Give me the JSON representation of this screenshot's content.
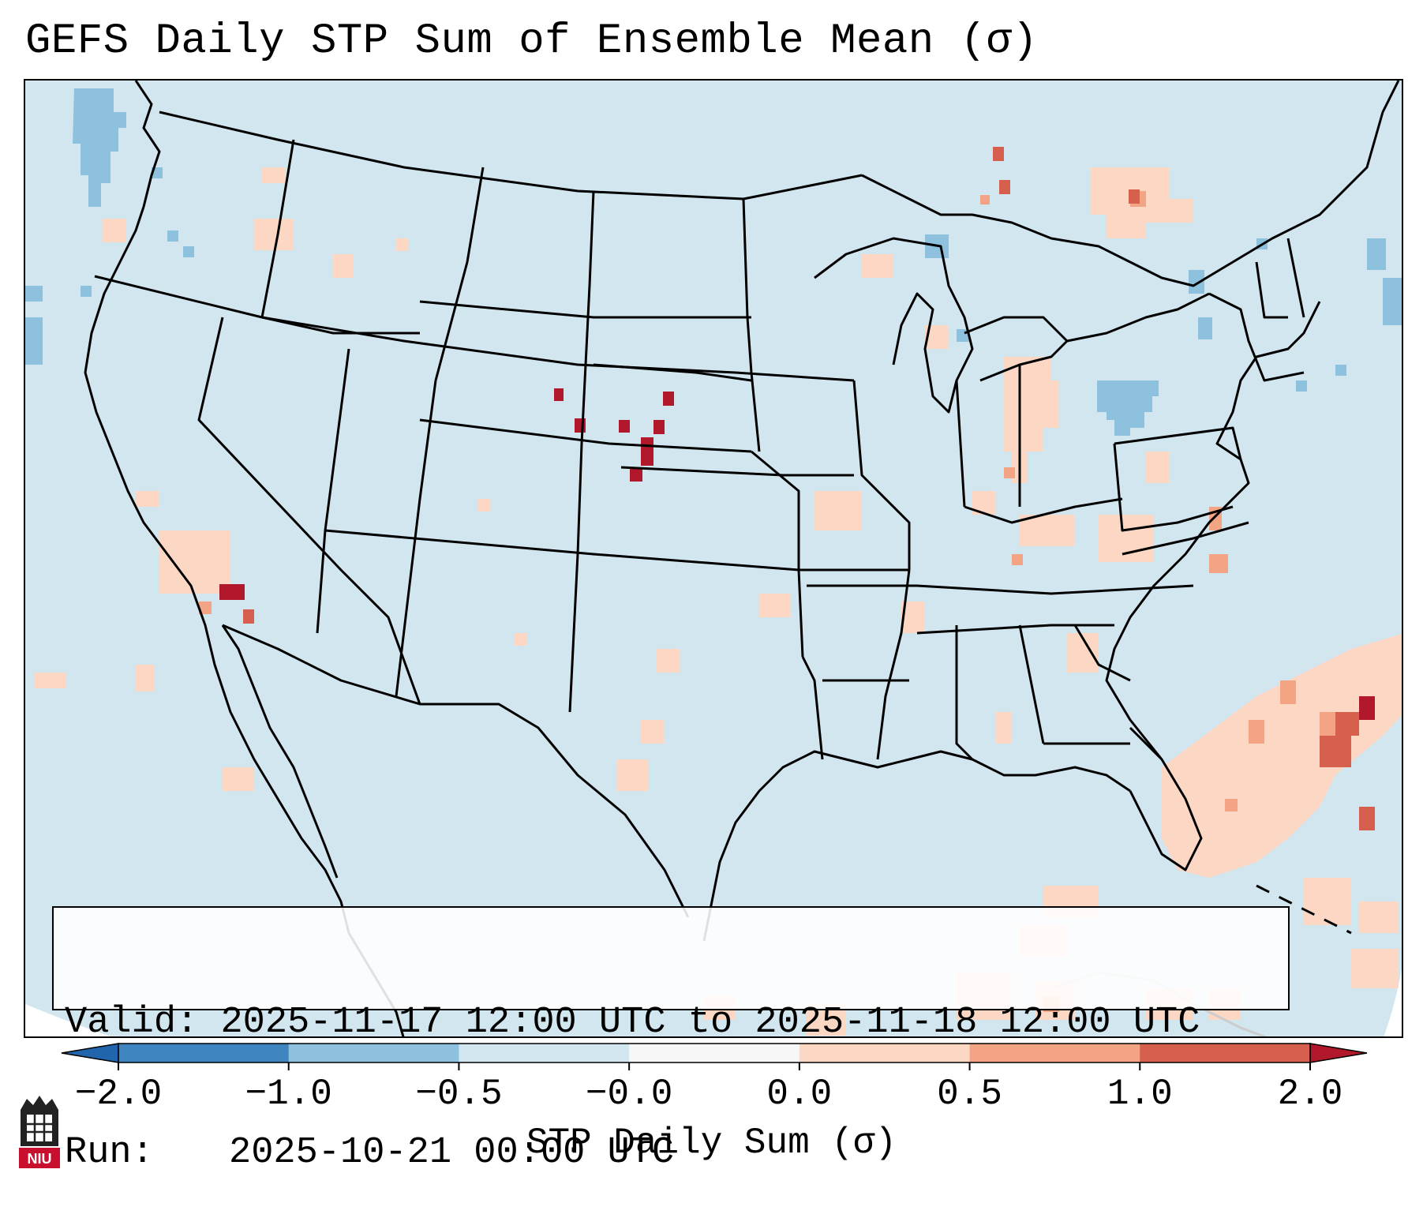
{
  "title": "GEFS Daily STP Sum of Ensemble Mean (σ)",
  "info": {
    "valid_label": "Valid:",
    "valid_value": "2025-11-17 12:00 UTC to 2025-11-18 12:00 UTC",
    "run_label": "Run:",
    "run_value": "2025-10-21 00:00 UTC"
  },
  "colorbar": {
    "label": "STP Daily Sum (σ)",
    "ticks": [
      "−2.0",
      "−1.0",
      "−0.5",
      "−0.0",
      "0.0",
      "0.5",
      "1.0",
      "2.0"
    ],
    "colors": [
      "#3f86c0",
      "#8ec1dd",
      "#d2e6f0",
      "#f7f7f7",
      "#fcd7c4",
      "#f2a484",
      "#d6604d"
    ],
    "extend_low_color": "#2166ac",
    "extend_high_color": "#b2182b"
  },
  "map": {
    "region": "CONUS",
    "background_color": "#d2e6f0",
    "positive_anomalies": [
      "Central Plains (Nebraska)",
      "Southern Nevada",
      "Western Atlantic east of Southeast U.S.",
      "Ohio Valley",
      "Mid-Atlantic",
      "Southern Ontario / Quebec"
    ],
    "negative_anomalies": [
      "Pacific Northwest offshore",
      "Pennsylvania / New York",
      "Lake Superior"
    ]
  },
  "logo": {
    "text": "NIU",
    "color": "#c8102e"
  }
}
